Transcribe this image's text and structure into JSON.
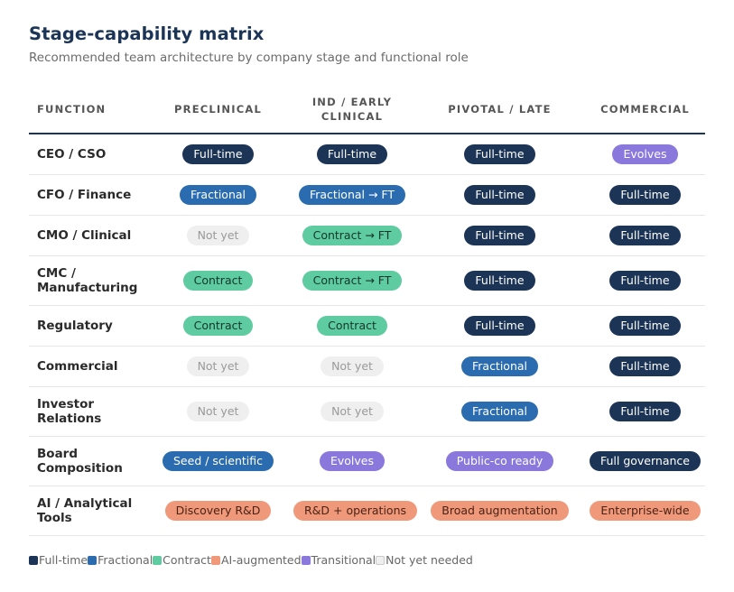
{
  "header": {
    "title": "Stage-capability matrix",
    "subtitle": "Recommended team architecture by company stage and functional role"
  },
  "colors": {
    "full": "#1c3557",
    "fractional": "#2b6cb0",
    "contract": "#5ecba1",
    "ai": "#f0987a",
    "transitional": "#8a78dc",
    "notyet": "#efefef"
  },
  "table": {
    "columns": [
      "FUNCTION",
      "PRECLINICAL",
      "IND / EARLY CLINICAL",
      "PIVOTAL / LATE",
      "COMMERCIAL"
    ],
    "rows": [
      {
        "function": "CEO / CSO",
        "cells": [
          {
            "label": "Full-time",
            "type": "full"
          },
          {
            "label": "Full-time",
            "type": "full"
          },
          {
            "label": "Full-time",
            "type": "full"
          },
          {
            "label": "Evolves",
            "type": "trans"
          }
        ]
      },
      {
        "function": "CFO / Finance",
        "cells": [
          {
            "label": "Fractional",
            "type": "frac"
          },
          {
            "label": "Fractional → FT",
            "type": "frac"
          },
          {
            "label": "Full-time",
            "type": "full"
          },
          {
            "label": "Full-time",
            "type": "full"
          }
        ]
      },
      {
        "function": "CMO / Clinical",
        "cells": [
          {
            "label": "Not yet",
            "type": "notyet"
          },
          {
            "label": "Contract → FT",
            "type": "contract"
          },
          {
            "label": "Full-time",
            "type": "full"
          },
          {
            "label": "Full-time",
            "type": "full"
          }
        ]
      },
      {
        "function": "CMC / Manufacturing",
        "cells": [
          {
            "label": "Contract",
            "type": "contract"
          },
          {
            "label": "Contract → FT",
            "type": "contract"
          },
          {
            "label": "Full-time",
            "type": "full"
          },
          {
            "label": "Full-time",
            "type": "full"
          }
        ]
      },
      {
        "function": "Regulatory",
        "cells": [
          {
            "label": "Contract",
            "type": "contract"
          },
          {
            "label": "Contract",
            "type": "contract"
          },
          {
            "label": "Full-time",
            "type": "full"
          },
          {
            "label": "Full-time",
            "type": "full"
          }
        ]
      },
      {
        "function": "Commercial",
        "cells": [
          {
            "label": "Not yet",
            "type": "notyet"
          },
          {
            "label": "Not yet",
            "type": "notyet"
          },
          {
            "label": "Fractional",
            "type": "frac"
          },
          {
            "label": "Full-time",
            "type": "full"
          }
        ]
      },
      {
        "function": "Investor Relations",
        "cells": [
          {
            "label": "Not yet",
            "type": "notyet"
          },
          {
            "label": "Not yet",
            "type": "notyet"
          },
          {
            "label": "Fractional",
            "type": "frac"
          },
          {
            "label": "Full-time",
            "type": "full"
          }
        ]
      },
      {
        "function": "Board Composition",
        "cells": [
          {
            "label": "Seed / scientific",
            "type": "frac"
          },
          {
            "label": "Evolves",
            "type": "trans"
          },
          {
            "label": "Public-co ready",
            "type": "trans"
          },
          {
            "label": "Full governance",
            "type": "full"
          }
        ]
      },
      {
        "function": "AI / Analytical Tools",
        "cells": [
          {
            "label": "Discovery R&D",
            "type": "ai"
          },
          {
            "label": "R&D + operations",
            "type": "ai"
          },
          {
            "label": "Broad augmentation",
            "type": "ai"
          },
          {
            "label": "Enterprise-wide",
            "type": "ai"
          }
        ]
      }
    ]
  },
  "legend": [
    {
      "label": "Full-time",
      "type": "full"
    },
    {
      "label": "Fractional",
      "type": "frac"
    },
    {
      "label": "Contract",
      "type": "contract"
    },
    {
      "label": "AI-augmented",
      "type": "ai"
    },
    {
      "label": "Transitional",
      "type": "trans"
    },
    {
      "label": "Not yet needed",
      "type": "notyet"
    }
  ]
}
